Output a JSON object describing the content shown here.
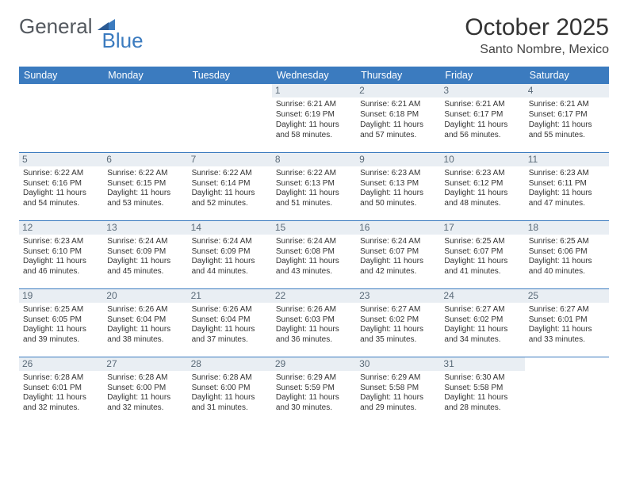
{
  "logo": {
    "word1": "General",
    "word2": "Blue"
  },
  "title": "October 2025",
  "subtitle": "Santo Nombre, Mexico",
  "colors": {
    "header_bg": "#3b7bbf",
    "header_text": "#ffffff",
    "daynum_bg": "#e9eef3",
    "daynum_text": "#5a6a78",
    "rule": "#3b7bbf",
    "body_text": "#333333",
    "logo_gray": "#54595f",
    "logo_blue": "#3b7bbf"
  },
  "weekdays": [
    "Sunday",
    "Monday",
    "Tuesday",
    "Wednesday",
    "Thursday",
    "Friday",
    "Saturday"
  ],
  "weeks": [
    [
      null,
      null,
      null,
      {
        "n": "1",
        "sunrise": "6:21 AM",
        "sunset": "6:19 PM",
        "dl": "11 hours and 58 minutes."
      },
      {
        "n": "2",
        "sunrise": "6:21 AM",
        "sunset": "6:18 PM",
        "dl": "11 hours and 57 minutes."
      },
      {
        "n": "3",
        "sunrise": "6:21 AM",
        "sunset": "6:17 PM",
        "dl": "11 hours and 56 minutes."
      },
      {
        "n": "4",
        "sunrise": "6:21 AM",
        "sunset": "6:17 PM",
        "dl": "11 hours and 55 minutes."
      }
    ],
    [
      {
        "n": "5",
        "sunrise": "6:22 AM",
        "sunset": "6:16 PM",
        "dl": "11 hours and 54 minutes."
      },
      {
        "n": "6",
        "sunrise": "6:22 AM",
        "sunset": "6:15 PM",
        "dl": "11 hours and 53 minutes."
      },
      {
        "n": "7",
        "sunrise": "6:22 AM",
        "sunset": "6:14 PM",
        "dl": "11 hours and 52 minutes."
      },
      {
        "n": "8",
        "sunrise": "6:22 AM",
        "sunset": "6:13 PM",
        "dl": "11 hours and 51 minutes."
      },
      {
        "n": "9",
        "sunrise": "6:23 AM",
        "sunset": "6:13 PM",
        "dl": "11 hours and 50 minutes."
      },
      {
        "n": "10",
        "sunrise": "6:23 AM",
        "sunset": "6:12 PM",
        "dl": "11 hours and 48 minutes."
      },
      {
        "n": "11",
        "sunrise": "6:23 AM",
        "sunset": "6:11 PM",
        "dl": "11 hours and 47 minutes."
      }
    ],
    [
      {
        "n": "12",
        "sunrise": "6:23 AM",
        "sunset": "6:10 PM",
        "dl": "11 hours and 46 minutes."
      },
      {
        "n": "13",
        "sunrise": "6:24 AM",
        "sunset": "6:09 PM",
        "dl": "11 hours and 45 minutes."
      },
      {
        "n": "14",
        "sunrise": "6:24 AM",
        "sunset": "6:09 PM",
        "dl": "11 hours and 44 minutes."
      },
      {
        "n": "15",
        "sunrise": "6:24 AM",
        "sunset": "6:08 PM",
        "dl": "11 hours and 43 minutes."
      },
      {
        "n": "16",
        "sunrise": "6:24 AM",
        "sunset": "6:07 PM",
        "dl": "11 hours and 42 minutes."
      },
      {
        "n": "17",
        "sunrise": "6:25 AM",
        "sunset": "6:07 PM",
        "dl": "11 hours and 41 minutes."
      },
      {
        "n": "18",
        "sunrise": "6:25 AM",
        "sunset": "6:06 PM",
        "dl": "11 hours and 40 minutes."
      }
    ],
    [
      {
        "n": "19",
        "sunrise": "6:25 AM",
        "sunset": "6:05 PM",
        "dl": "11 hours and 39 minutes."
      },
      {
        "n": "20",
        "sunrise": "6:26 AM",
        "sunset": "6:04 PM",
        "dl": "11 hours and 38 minutes."
      },
      {
        "n": "21",
        "sunrise": "6:26 AM",
        "sunset": "6:04 PM",
        "dl": "11 hours and 37 minutes."
      },
      {
        "n": "22",
        "sunrise": "6:26 AM",
        "sunset": "6:03 PM",
        "dl": "11 hours and 36 minutes."
      },
      {
        "n": "23",
        "sunrise": "6:27 AM",
        "sunset": "6:02 PM",
        "dl": "11 hours and 35 minutes."
      },
      {
        "n": "24",
        "sunrise": "6:27 AM",
        "sunset": "6:02 PM",
        "dl": "11 hours and 34 minutes."
      },
      {
        "n": "25",
        "sunrise": "6:27 AM",
        "sunset": "6:01 PM",
        "dl": "11 hours and 33 minutes."
      }
    ],
    [
      {
        "n": "26",
        "sunrise": "6:28 AM",
        "sunset": "6:01 PM",
        "dl": "11 hours and 32 minutes."
      },
      {
        "n": "27",
        "sunrise": "6:28 AM",
        "sunset": "6:00 PM",
        "dl": "11 hours and 32 minutes."
      },
      {
        "n": "28",
        "sunrise": "6:28 AM",
        "sunset": "6:00 PM",
        "dl": "11 hours and 31 minutes."
      },
      {
        "n": "29",
        "sunrise": "6:29 AM",
        "sunset": "5:59 PM",
        "dl": "11 hours and 30 minutes."
      },
      {
        "n": "30",
        "sunrise": "6:29 AM",
        "sunset": "5:58 PM",
        "dl": "11 hours and 29 minutes."
      },
      {
        "n": "31",
        "sunrise": "6:30 AM",
        "sunset": "5:58 PM",
        "dl": "11 hours and 28 minutes."
      },
      null
    ]
  ],
  "labels": {
    "sunrise": "Sunrise:",
    "sunset": "Sunset:",
    "daylight": "Daylight:"
  }
}
